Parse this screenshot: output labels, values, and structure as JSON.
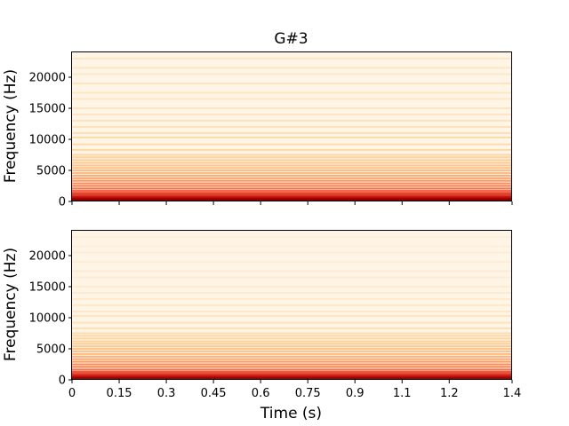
{
  "chart_data": [
    {
      "type": "heatmap",
      "title": "G#3",
      "xlabel": "",
      "ylabel": "Frequency (Hz)",
      "xlim": [
        0,
        1.4
      ],
      "ylim": [
        0,
        24000
      ],
      "yticks": [
        0,
        5000,
        10000,
        15000,
        20000
      ],
      "ytick_labels": [
        "0",
        "5000",
        "10000",
        "15000",
        "20000"
      ],
      "xticks": [
        0,
        0.15,
        0.3,
        0.45,
        0.6,
        0.75,
        0.9,
        1.05,
        1.2,
        1.4
      ],
      "xtick_labels_visible": false,
      "colormap": "OrRd",
      "harmonic_bands": [
        {
          "freq": 208,
          "intensity": 1.0
        },
        {
          "freq": 415,
          "intensity": 0.97
        },
        {
          "freq": 620,
          "intensity": 0.9
        },
        {
          "freq": 830,
          "intensity": 0.82
        },
        {
          "freq": 1040,
          "intensity": 0.74
        },
        {
          "freq": 1250,
          "intensity": 0.7
        },
        {
          "freq": 1660,
          "intensity": 0.62
        },
        {
          "freq": 2080,
          "intensity": 0.58
        },
        {
          "freq": 2500,
          "intensity": 0.55
        },
        {
          "freq": 2910,
          "intensity": 0.5
        },
        {
          "freq": 3330,
          "intensity": 0.47
        },
        {
          "freq": 3740,
          "intensity": 0.44
        },
        {
          "freq": 4160,
          "intensity": 0.41
        },
        {
          "freq": 4580,
          "intensity": 0.38
        },
        {
          "freq": 5000,
          "intensity": 0.36
        },
        {
          "freq": 5400,
          "intensity": 0.34
        },
        {
          "freq": 5800,
          "intensity": 0.32
        },
        {
          "freq": 6200,
          "intensity": 0.3
        },
        {
          "freq": 6650,
          "intensity": 0.28
        },
        {
          "freq": 7100,
          "intensity": 0.26
        },
        {
          "freq": 7500,
          "intensity": 0.24
        },
        {
          "freq": 8300,
          "intensity": 0.22
        },
        {
          "freq": 9200,
          "intensity": 0.2
        },
        {
          "freq": 10300,
          "intensity": 0.22
        },
        {
          "freq": 11000,
          "intensity": 0.18
        },
        {
          "freq": 12000,
          "intensity": 0.17
        },
        {
          "freq": 13000,
          "intensity": 0.16
        },
        {
          "freq": 14000,
          "intensity": 0.15
        },
        {
          "freq": 15000,
          "intensity": 0.15
        },
        {
          "freq": 16500,
          "intensity": 0.14
        },
        {
          "freq": 17500,
          "intensity": 0.14
        },
        {
          "freq": 19000,
          "intensity": 0.15
        },
        {
          "freq": 20500,
          "intensity": 0.13
        },
        {
          "freq": 21500,
          "intensity": 0.14
        },
        {
          "freq": 23000,
          "intensity": 0.13
        }
      ]
    },
    {
      "type": "heatmap",
      "title": "",
      "xlabel": "Time (s)",
      "ylabel": "Frequency (Hz)",
      "xlim": [
        0,
        1.4
      ],
      "ylim": [
        0,
        24000
      ],
      "yticks": [
        0,
        5000,
        10000,
        15000,
        20000
      ],
      "ytick_labels": [
        "0",
        "5000",
        "10000",
        "15000",
        "20000"
      ],
      "xticks": [
        0,
        0.15,
        0.3,
        0.45,
        0.6,
        0.75,
        0.9,
        1.05,
        1.2,
        1.4
      ],
      "xtick_labels": [
        "0",
        "0.15",
        "0.3",
        "0.45",
        "0.6",
        "0.75",
        "0.9",
        "1.1",
        "1.2",
        "1.4"
      ],
      "colormap": "OrRd",
      "harmonic_bands": [
        {
          "freq": 208,
          "intensity": 0.95
        },
        {
          "freq": 415,
          "intensity": 0.92
        },
        {
          "freq": 620,
          "intensity": 0.85
        },
        {
          "freq": 830,
          "intensity": 0.78
        },
        {
          "freq": 1040,
          "intensity": 0.72
        },
        {
          "freq": 1250,
          "intensity": 0.66
        },
        {
          "freq": 1660,
          "intensity": 0.58
        },
        {
          "freq": 2080,
          "intensity": 0.54
        },
        {
          "freq": 2500,
          "intensity": 0.5
        },
        {
          "freq": 2910,
          "intensity": 0.46
        },
        {
          "freq": 3330,
          "intensity": 0.42
        },
        {
          "freq": 3740,
          "intensity": 0.4
        },
        {
          "freq": 4160,
          "intensity": 0.37
        },
        {
          "freq": 4580,
          "intensity": 0.34
        },
        {
          "freq": 5000,
          "intensity": 0.32
        },
        {
          "freq": 5400,
          "intensity": 0.3
        },
        {
          "freq": 5800,
          "intensity": 0.28
        },
        {
          "freq": 6200,
          "intensity": 0.26
        },
        {
          "freq": 6650,
          "intensity": 0.24
        },
        {
          "freq": 7100,
          "intensity": 0.22
        },
        {
          "freq": 7500,
          "intensity": 0.2
        },
        {
          "freq": 8300,
          "intensity": 0.18
        },
        {
          "freq": 9200,
          "intensity": 0.16
        },
        {
          "freq": 10300,
          "intensity": 0.15
        },
        {
          "freq": 11000,
          "intensity": 0.13
        },
        {
          "freq": 12000,
          "intensity": 0.12
        },
        {
          "freq": 13000,
          "intensity": 0.11
        },
        {
          "freq": 14000,
          "intensity": 0.1
        },
        {
          "freq": 15000,
          "intensity": 0.1
        },
        {
          "freq": 16500,
          "intensity": 0.09
        },
        {
          "freq": 17500,
          "intensity": 0.09
        },
        {
          "freq": 19000,
          "intensity": 0.08
        },
        {
          "freq": 20500,
          "intensity": 0.08
        },
        {
          "freq": 21500,
          "intensity": 0.07
        },
        {
          "freq": 23000,
          "intensity": 0.07
        }
      ]
    }
  ]
}
